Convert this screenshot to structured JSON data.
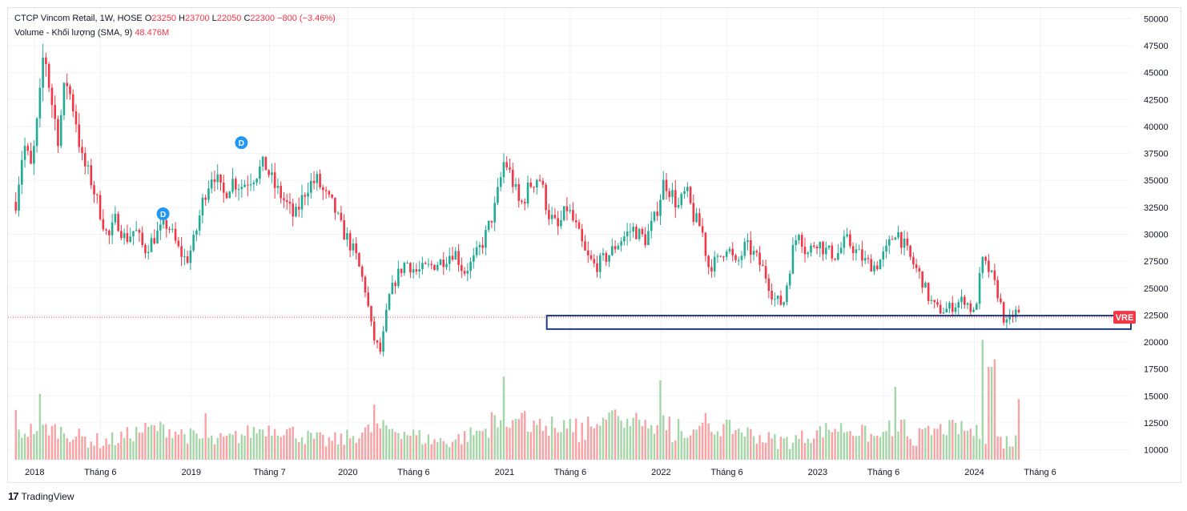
{
  "legend": {
    "title": "CTCP Vincom Retail, 1W, HOSE",
    "o_label": "O",
    "o_value": "23250",
    "h_label": "H",
    "h_value": "23700",
    "l_label": "L",
    "l_value": "22050",
    "c_label": "C",
    "c_value": "22300",
    "change": "−800 (−3.46%)",
    "volume_label": "Volume - Khối lượng (SMA, 9)",
    "volume_value": "48.476M"
  },
  "badge": {
    "symbol": "VRE",
    "color": "#f23645"
  },
  "dividend_marker": "D",
  "footer": {
    "brand": "TradingView"
  },
  "colors": {
    "up": "#22ab94",
    "down": "#f23645",
    "up_volume": "#a5d6a7",
    "down_volume": "#faa1a4",
    "zone": "#1e3a8a",
    "badge": "#f23645",
    "marker": "#2196f3"
  },
  "chart_data": {
    "type": "candlestick",
    "title": "CTCP Vincom Retail",
    "timeframe": "1W",
    "exchange": "HOSE",
    "last": {
      "open": 23250,
      "high": 23700,
      "low": 22050,
      "close": 22300
    },
    "y_ticks": [
      10000,
      12500,
      15000,
      17500,
      20000,
      22500,
      25000,
      27500,
      30000,
      32500,
      35000,
      37500,
      40000,
      42500,
      45000,
      47500,
      50000
    ],
    "y_tick_labels": [
      "10000",
      "12500",
      "15000",
      "17500",
      "20000",
      "22500",
      "25000",
      "27500",
      "30000",
      "32500",
      "35000",
      "37500",
      "40000",
      "42500",
      "45000",
      "47500",
      "50000"
    ],
    "ylim": [
      9000,
      51000
    ],
    "x_ticks": [
      {
        "t": 2018.0,
        "label": "2018"
      },
      {
        "t": 2018.42,
        "label": "Tháng 6"
      },
      {
        "t": 2019.0,
        "label": "2019"
      },
      {
        "t": 2019.5,
        "label": "Tháng 7"
      },
      {
        "t": 2020.0,
        "label": "2020"
      },
      {
        "t": 2020.42,
        "label": "Tháng 6"
      },
      {
        "t": 2021.0,
        "label": "2021"
      },
      {
        "t": 2021.42,
        "label": "Tháng 6"
      },
      {
        "t": 2022.0,
        "label": "2022"
      },
      {
        "t": 2022.42,
        "label": "Tháng 6"
      },
      {
        "t": 2023.0,
        "label": "2023"
      },
      {
        "t": 2023.42,
        "label": "Tháng 6"
      },
      {
        "t": 2024.0,
        "label": "2024"
      },
      {
        "t": 2024.42,
        "label": "Tháng 6"
      }
    ],
    "xlim": [
      2017.83,
      2025.0
    ],
    "close_anchors": [
      [
        2017.88,
        33000
      ],
      [
        2017.93,
        38500
      ],
      [
        2017.98,
        36000
      ],
      [
        2018.03,
        42000
      ],
      [
        2018.06,
        47500
      ],
      [
        2018.1,
        43000
      ],
      [
        2018.15,
        39000
      ],
      [
        2018.2,
        44500
      ],
      [
        2018.26,
        41000
      ],
      [
        2018.3,
        37000
      ],
      [
        2018.36,
        35000
      ],
      [
        2018.42,
        32000
      ],
      [
        2018.47,
        29500
      ],
      [
        2018.52,
        31500
      ],
      [
        2018.58,
        29500
      ],
      [
        2018.64,
        30500
      ],
      [
        2018.7,
        28500
      ],
      [
        2018.78,
        30000
      ],
      [
        2018.85,
        31000
      ],
      [
        2018.92,
        28500
      ],
      [
        2018.97,
        27500
      ],
      [
        2019.02,
        29500
      ],
      [
        2019.08,
        33500
      ],
      [
        2019.14,
        36000
      ],
      [
        2019.2,
        33500
      ],
      [
        2019.26,
        35000
      ],
      [
        2019.32,
        34500
      ],
      [
        2019.4,
        35500
      ],
      [
        2019.47,
        36500
      ],
      [
        2019.53,
        34500
      ],
      [
        2019.6,
        33000
      ],
      [
        2019.66,
        31500
      ],
      [
        2019.74,
        34500
      ],
      [
        2019.8,
        35000
      ],
      [
        2019.86,
        33500
      ],
      [
        2019.91,
        32500
      ],
      [
        2019.96,
        30500
      ],
      [
        2020.0,
        29500
      ],
      [
        2020.05,
        28000
      ],
      [
        2020.11,
        25000
      ],
      [
        2020.16,
        20500
      ],
      [
        2020.21,
        19000
      ],
      [
        2020.26,
        24000
      ],
      [
        2020.31,
        26000
      ],
      [
        2020.37,
        27500
      ],
      [
        2020.44,
        26500
      ],
      [
        2020.52,
        27000
      ],
      [
        2020.6,
        27500
      ],
      [
        2020.68,
        28500
      ],
      [
        2020.74,
        26500
      ],
      [
        2020.8,
        27500
      ],
      [
        2020.87,
        29500
      ],
      [
        2020.94,
        32500
      ],
      [
        2021.0,
        37000
      ],
      [
        2021.05,
        35000
      ],
      [
        2021.1,
        32500
      ],
      [
        2021.16,
        34500
      ],
      [
        2021.22,
        35500
      ],
      [
        2021.28,
        32000
      ],
      [
        2021.34,
        30500
      ],
      [
        2021.4,
        32500
      ],
      [
        2021.46,
        30500
      ],
      [
        2021.52,
        28000
      ],
      [
        2021.58,
        27000
      ],
      [
        2021.66,
        28000
      ],
      [
        2021.74,
        29500
      ],
      [
        2021.82,
        30500
      ],
      [
        2021.9,
        29500
      ],
      [
        2021.96,
        31500
      ],
      [
        2022.02,
        35000
      ],
      [
        2022.06,
        34000
      ],
      [
        2022.11,
        32500
      ],
      [
        2022.16,
        34000
      ],
      [
        2022.21,
        31500
      ],
      [
        2022.26,
        30500
      ],
      [
        2022.3,
        27000
      ],
      [
        2022.36,
        27500
      ],
      [
        2022.42,
        29000
      ],
      [
        2022.48,
        27000
      ],
      [
        2022.54,
        29000
      ],
      [
        2022.6,
        28000
      ],
      [
        2022.66,
        26500
      ],
      [
        2022.72,
        24000
      ],
      [
        2022.78,
        23500
      ],
      [
        2022.84,
        28500
      ],
      [
        2022.88,
        30500
      ],
      [
        2022.93,
        28000
      ],
      [
        2022.99,
        29500
      ],
      [
        2023.05,
        28500
      ],
      [
        2023.12,
        28000
      ],
      [
        2023.18,
        29500
      ],
      [
        2023.24,
        28500
      ],
      [
        2023.3,
        27500
      ],
      [
        2023.37,
        27000
      ],
      [
        2023.44,
        28500
      ],
      [
        2023.5,
        30500
      ],
      [
        2023.55,
        29000
      ],
      [
        2023.6,
        27500
      ],
      [
        2023.66,
        26000
      ],
      [
        2023.71,
        24000
      ],
      [
        2023.76,
        23000
      ],
      [
        2023.82,
        23000
      ],
      [
        2023.88,
        23500
      ],
      [
        2023.94,
        24000
      ],
      [
        2024.0,
        22500
      ],
      [
        2024.05,
        27500
      ],
      [
        2024.1,
        26500
      ],
      [
        2024.15,
        24500
      ],
      [
        2024.2,
        21500
      ],
      [
        2024.26,
        22800
      ],
      [
        2024.3,
        22300
      ]
    ],
    "volume_spikes": [
      [
        2017.88,
        13.7
      ],
      [
        2018.03,
        15.2
      ],
      [
        2019.09,
        13.4
      ],
      [
        2020.17,
        14.2
      ],
      [
        2020.99,
        16.0
      ],
      [
        2021.99,
        15.9
      ],
      [
        2023.5,
        15.2
      ],
      [
        2024.06,
        20.2
      ],
      [
        2024.1,
        17.7
      ],
      [
        2024.13,
        18.4
      ],
      [
        2024.29,
        14.7
      ]
    ],
    "volume_unit": "M (approx, shown against price scale)",
    "support_zone": {
      "start": 2021.27,
      "end": 2025.0,
      "low": 21200,
      "high": 22450
    },
    "dividend_markers": [
      {
        "t": 2018.82,
        "price": 31900
      },
      {
        "t": 2019.32,
        "price": 38500
      }
    ],
    "last_price_line": 22300
  }
}
